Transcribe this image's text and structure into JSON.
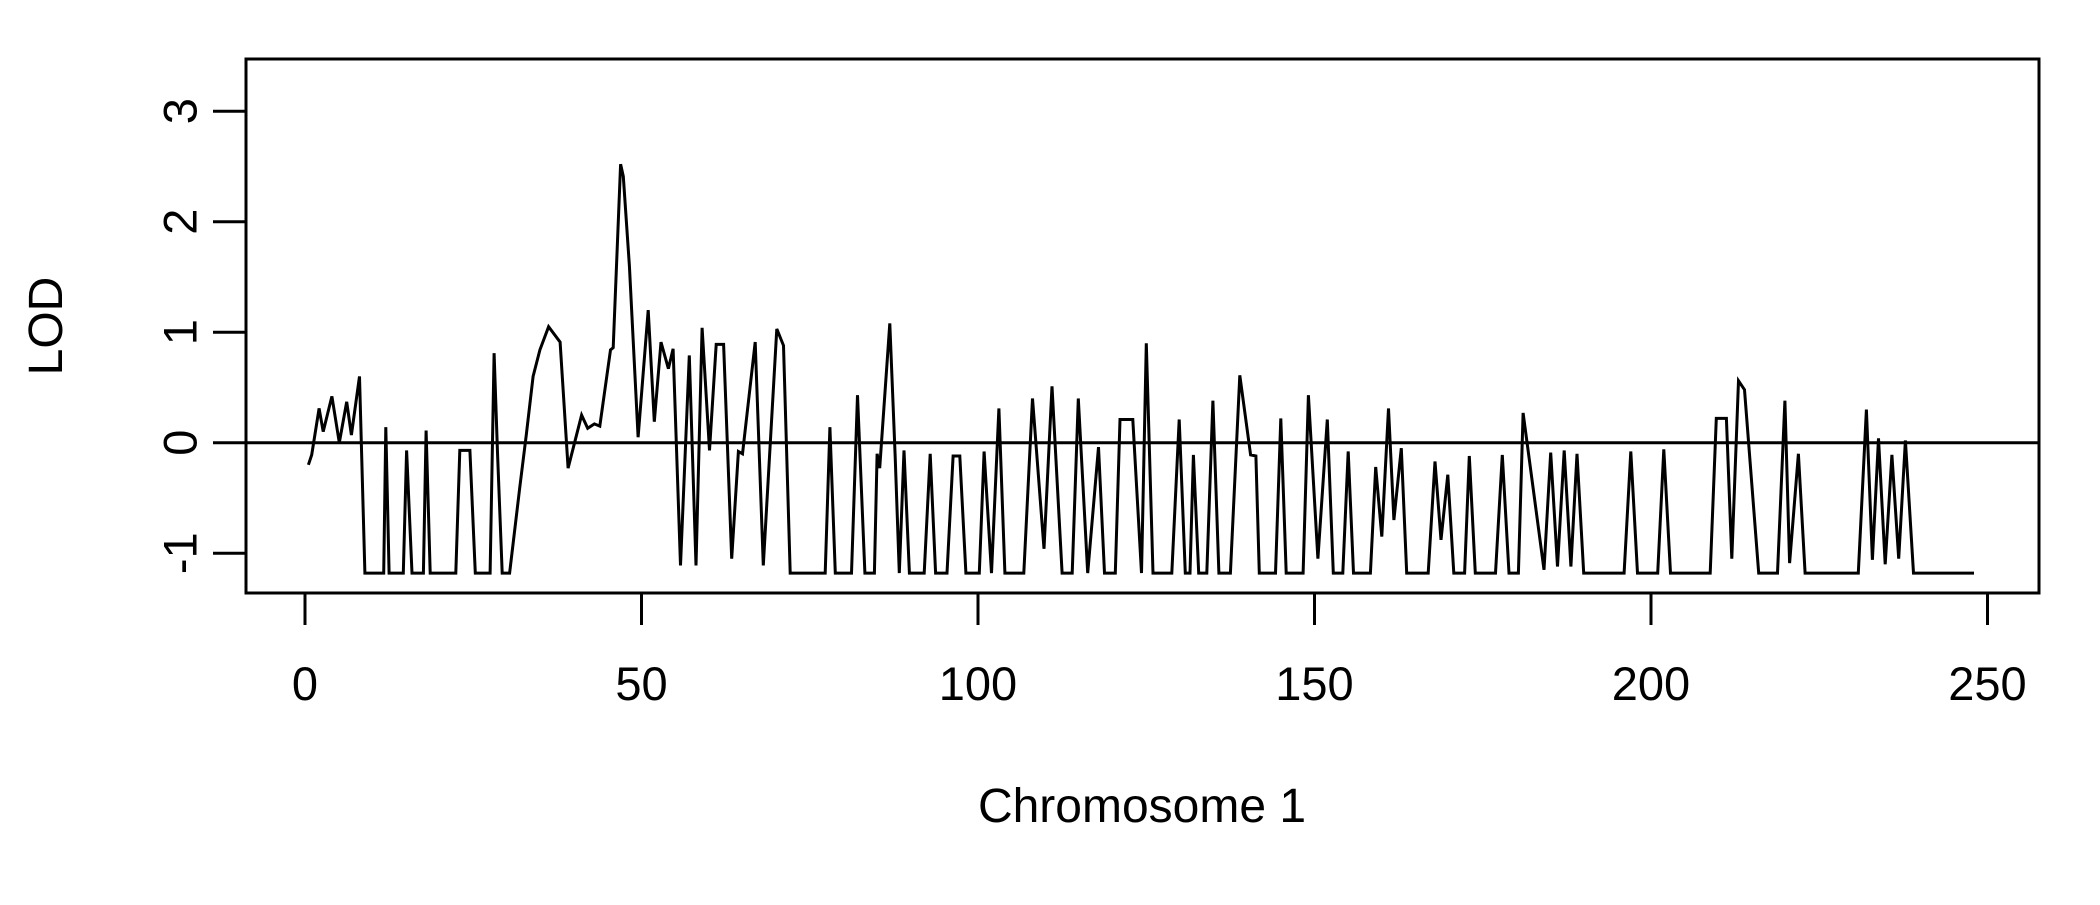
{
  "chart_data": {
    "type": "line",
    "title": "",
    "xlabel": "Chromosome 1",
    "ylabel": "LOD",
    "x_ticks": [
      0,
      50,
      100,
      150,
      200,
      250
    ],
    "y_ticks": [
      -1,
      0,
      1,
      2,
      3
    ],
    "xlim": [
      -9,
      258
    ],
    "ylim": [
      -1.36,
      3.47
    ],
    "grid": false,
    "legend": "none",
    "reference_line_y": 0,
    "line_color": "#000000",
    "background_color": "#ffffff",
    "x_range_of_data": [
      0.5,
      248
    ],
    "baseline_floor_lod": -1.18,
    "series": [
      {
        "name": "LOD curve",
        "points": [
          [
            0.5,
            -0.2
          ],
          [
            1.0,
            -0.11
          ],
          [
            2.1,
            0.31
          ],
          [
            2.7,
            0.1
          ],
          [
            4.0,
            0.42
          ],
          [
            5.1,
            0.0
          ],
          [
            6.2,
            0.37
          ],
          [
            6.9,
            0.07
          ],
          [
            8.1,
            0.6
          ],
          [
            8.9,
            -1.18
          ],
          [
            11.7,
            -1.18
          ],
          [
            12.0,
            0.14
          ],
          [
            12.5,
            -1.18
          ],
          [
            14.6,
            -1.18
          ],
          [
            15.1,
            -0.07
          ],
          [
            15.9,
            -1.18
          ],
          [
            17.6,
            -1.18
          ],
          [
            18.0,
            0.11
          ],
          [
            18.6,
            -1.18
          ],
          [
            22.4,
            -1.18
          ],
          [
            23.0,
            -0.07
          ],
          [
            24.5,
            -0.07
          ],
          [
            25.3,
            -1.18
          ],
          [
            27.5,
            -1.18
          ],
          [
            28.1,
            0.81
          ],
          [
            28.6,
            -0.09
          ],
          [
            29.3,
            -1.18
          ],
          [
            30.4,
            -1.18
          ],
          [
            31.9,
            -0.41
          ],
          [
            32.9,
            0.08
          ],
          [
            33.9,
            0.6
          ],
          [
            34.9,
            0.84
          ],
          [
            36.2,
            1.05
          ],
          [
            37.9,
            0.91
          ],
          [
            39.1,
            -0.23
          ],
          [
            41.1,
            0.25
          ],
          [
            42.0,
            0.13
          ],
          [
            43.0,
            0.17
          ],
          [
            43.8,
            0.15
          ],
          [
            45.4,
            0.84
          ],
          [
            45.8,
            0.86
          ],
          [
            46.9,
            2.52
          ],
          [
            47.3,
            2.41
          ],
          [
            48.2,
            1.6
          ],
          [
            49.5,
            0.05
          ],
          [
            51.0,
            1.2
          ],
          [
            51.9,
            0.19
          ],
          [
            52.9,
            0.91
          ],
          [
            54.0,
            0.67
          ],
          [
            54.7,
            0.85
          ],
          [
            55.8,
            -1.11
          ],
          [
            57.1,
            0.79
          ],
          [
            58.1,
            -1.11
          ],
          [
            59.0,
            1.04
          ],
          [
            60.1,
            -0.07
          ],
          [
            61.1,
            0.89
          ],
          [
            62.2,
            0.89
          ],
          [
            63.4,
            -1.05
          ],
          [
            64.4,
            -0.08
          ],
          [
            65.0,
            -0.1
          ],
          [
            66.9,
            0.91
          ],
          [
            68.1,
            -1.11
          ],
          [
            70.1,
            1.03
          ],
          [
            71.1,
            0.88
          ],
          [
            72.1,
            -1.18
          ],
          [
            77.3,
            -1.18
          ],
          [
            78.0,
            0.14
          ],
          [
            78.8,
            -1.18
          ],
          [
            81.2,
            -1.18
          ],
          [
            82.1,
            0.43
          ],
          [
            83.2,
            -1.18
          ],
          [
            84.6,
            -1.18
          ],
          [
            85.0,
            -0.1
          ],
          [
            85.4,
            -0.23
          ],
          [
            86.9,
            1.08
          ],
          [
            87.7,
            -0.13
          ],
          [
            88.3,
            -1.18
          ],
          [
            89.0,
            -0.07
          ],
          [
            89.8,
            -1.18
          ],
          [
            92.0,
            -1.18
          ],
          [
            92.9,
            -0.1
          ],
          [
            93.7,
            -1.18
          ],
          [
            95.4,
            -1.18
          ],
          [
            96.3,
            -0.12
          ],
          [
            97.3,
            -0.12
          ],
          [
            98.2,
            -1.18
          ],
          [
            100.2,
            -1.18
          ],
          [
            100.9,
            -0.08
          ],
          [
            102.0,
            -1.18
          ],
          [
            103.1,
            0.31
          ],
          [
            104.0,
            -1.18
          ],
          [
            106.8,
            -1.18
          ],
          [
            108.1,
            0.4
          ],
          [
            109.8,
            -0.96
          ],
          [
            111.0,
            0.51
          ],
          [
            112.5,
            -1.18
          ],
          [
            114.0,
            -1.18
          ],
          [
            114.9,
            0.4
          ],
          [
            116.3,
            -1.18
          ],
          [
            117.9,
            -0.04
          ],
          [
            118.8,
            -1.18
          ],
          [
            120.4,
            -1.18
          ],
          [
            121.1,
            0.21
          ],
          [
            123.0,
            0.21
          ],
          [
            124.3,
            -1.18
          ],
          [
            125.0,
            0.9
          ],
          [
            126.0,
            -1.18
          ],
          [
            128.8,
            -1.18
          ],
          [
            129.9,
            0.21
          ],
          [
            130.8,
            -1.18
          ],
          [
            131.5,
            -1.18
          ],
          [
            132.0,
            -0.11
          ],
          [
            132.8,
            -1.18
          ],
          [
            134.0,
            -1.18
          ],
          [
            134.9,
            0.38
          ],
          [
            135.8,
            -1.18
          ],
          [
            137.5,
            -1.18
          ],
          [
            138.9,
            0.61
          ],
          [
            140.5,
            -0.11
          ],
          [
            141.3,
            -0.12
          ],
          [
            141.8,
            -1.18
          ],
          [
            144.2,
            -1.18
          ],
          [
            145.0,
            0.22
          ],
          [
            145.8,
            -1.18
          ],
          [
            148.3,
            -1.18
          ],
          [
            149.1,
            0.43
          ],
          [
            150.5,
            -1.05
          ],
          [
            151.9,
            0.21
          ],
          [
            152.8,
            -1.18
          ],
          [
            154.2,
            -1.18
          ],
          [
            155.0,
            -0.08
          ],
          [
            155.8,
            -1.18
          ],
          [
            158.3,
            -1.18
          ],
          [
            159.1,
            -0.22
          ],
          [
            160.0,
            -0.85
          ],
          [
            161.0,
            0.31
          ],
          [
            161.8,
            -0.7
          ],
          [
            162.9,
            -0.05
          ],
          [
            163.7,
            -1.18
          ],
          [
            166.9,
            -1.18
          ],
          [
            167.9,
            -0.17
          ],
          [
            168.8,
            -0.88
          ],
          [
            169.8,
            -0.29
          ],
          [
            170.7,
            -1.18
          ],
          [
            172.3,
            -1.18
          ],
          [
            173.0,
            -0.12
          ],
          [
            173.9,
            -1.18
          ],
          [
            176.9,
            -1.18
          ],
          [
            177.9,
            -0.11
          ],
          [
            178.9,
            -1.18
          ],
          [
            180.3,
            -1.18
          ],
          [
            181.0,
            0.27
          ],
          [
            184.1,
            -1.15
          ],
          [
            185.1,
            -0.09
          ],
          [
            186.1,
            -1.12
          ],
          [
            187.1,
            -0.07
          ],
          [
            188.1,
            -1.12
          ],
          [
            189.0,
            -0.1
          ],
          [
            190.0,
            -1.18
          ],
          [
            196.0,
            -1.18
          ],
          [
            197.0,
            -0.08
          ],
          [
            198.0,
            -1.18
          ],
          [
            201.0,
            -1.18
          ],
          [
            201.9,
            -0.06
          ],
          [
            202.9,
            -1.18
          ],
          [
            208.8,
            -1.18
          ],
          [
            209.7,
            0.22
          ],
          [
            211.2,
            0.22
          ],
          [
            212.0,
            -1.05
          ],
          [
            213.0,
            0.56
          ],
          [
            213.9,
            0.48
          ],
          [
            216.0,
            -1.18
          ],
          [
            218.8,
            -1.18
          ],
          [
            219.9,
            0.38
          ],
          [
            220.6,
            -1.09
          ],
          [
            221.9,
            -0.1
          ],
          [
            222.9,
            -1.18
          ],
          [
            230.8,
            -1.18
          ],
          [
            232.0,
            0.3
          ],
          [
            232.9,
            -1.06
          ],
          [
            233.8,
            0.04
          ],
          [
            234.8,
            -1.1
          ],
          [
            235.8,
            -0.11
          ],
          [
            236.8,
            -1.05
          ],
          [
            237.8,
            0.02
          ],
          [
            239.0,
            -1.18
          ],
          [
            248.0,
            -1.18
          ]
        ]
      }
    ]
  }
}
